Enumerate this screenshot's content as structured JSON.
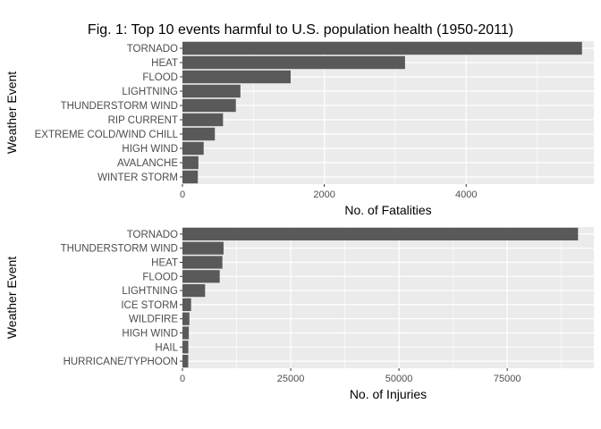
{
  "figure": {
    "title": "Fig. 1: Top 10 events harmful to U.S. population health (1950-2011)"
  },
  "chart_data": [
    {
      "type": "bar",
      "orientation": "horizontal",
      "xlabel": "No. of Fatalities",
      "ylabel": "Weather Event",
      "xlim": [
        0,
        5800
      ],
      "xticks": [
        0,
        2000,
        4000
      ],
      "xtick_labels": [
        "0",
        "2000",
        "4000"
      ],
      "grid": true,
      "categories": [
        "TORNADO",
        "HEAT",
        "FLOOD",
        "LIGHTNING",
        "THUNDERSTORM WIND",
        "RIP CURRENT",
        "EXTREME COLD/WIND CHILL",
        "HIGH WIND",
        "AVALANCHE",
        "WINTER STORM"
      ],
      "values": [
        5633,
        3138,
        1525,
        817,
        753,
        572,
        457,
        299,
        225,
        217
      ],
      "colors": {
        "bar": "#595959",
        "panel": "#ebebeb",
        "grid": "#ffffff"
      }
    },
    {
      "type": "bar",
      "orientation": "horizontal",
      "xlabel": "No. of Injuries",
      "ylabel": "Weather Event",
      "xlim": [
        0,
        95000
      ],
      "xticks": [
        0,
        25000,
        50000,
        75000
      ],
      "xtick_labels": [
        "0",
        "25000",
        "50000",
        "75000"
      ],
      "grid": true,
      "categories": [
        "TORNADO",
        "THUNDERSTORM WIND",
        "HEAT",
        "FLOOD",
        "LIGHTNING",
        "ICE STORM",
        "WILDFIRE",
        "HIGH WIND",
        "HAIL",
        "HURRICANE/TYPHOON"
      ],
      "values": [
        91346,
        9493,
        9224,
        8604,
        5230,
        1992,
        1606,
        1471,
        1361,
        1333
      ],
      "colors": {
        "bar": "#595959",
        "panel": "#ebebeb",
        "grid": "#ffffff"
      }
    }
  ]
}
